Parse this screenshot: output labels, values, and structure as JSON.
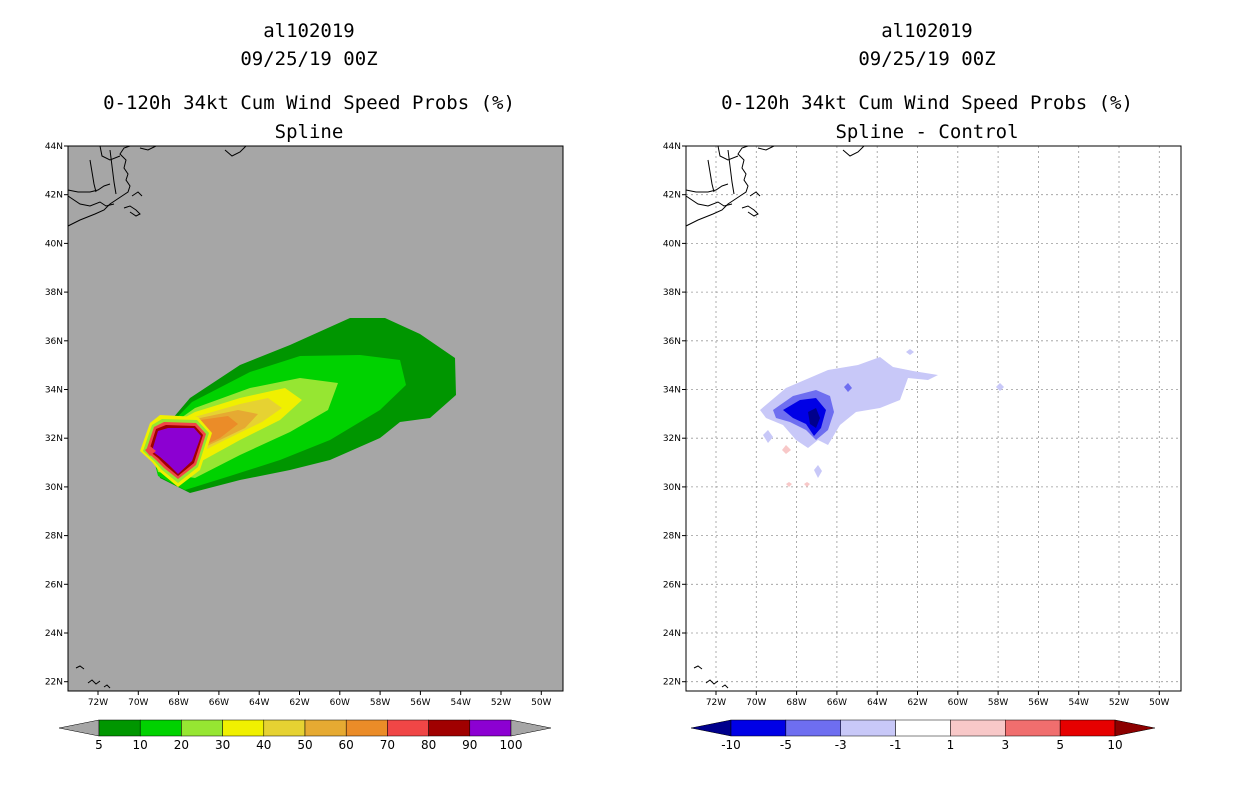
{
  "left_panel": {
    "storm_id": "al102019",
    "datetime": "09/25/19 00Z",
    "product": "0-120h 34kt Cum Wind Speed Probs (%)",
    "variant": "Spline",
    "map_background": "#a6a6a6",
    "colorbar": {
      "labels": [
        "5",
        "10",
        "20",
        "30",
        "40",
        "50",
        "60",
        "70",
        "80",
        "90",
        "100"
      ],
      "colors": [
        "#009600",
        "#00d200",
        "#96e632",
        "#f0f000",
        "#e6d232",
        "#e6aa32",
        "#eb8c28",
        "#f04646",
        "#a00000",
        "#8c00d2"
      ],
      "arrow_color": "#a6a6a6"
    }
  },
  "right_panel": {
    "storm_id": "al102019",
    "datetime": "09/25/19 00Z",
    "product": "0-120h 34kt Cum Wind Speed Probs (%)",
    "variant": "Spline - Control",
    "colorbar": {
      "labels": [
        "-10",
        "-5",
        "-3",
        "-1",
        "1",
        "3",
        "5",
        "10"
      ],
      "colors": [
        "#0000e6",
        "#6e6ef0",
        "#c8c8f8",
        "#ffffff",
        "#f8c8c8",
        "#f06e6e",
        "#e60000"
      ],
      "low_arrow_color": "#00008c",
      "high_arrow_color": "#8c0000"
    }
  },
  "axes": {
    "lat_labels": [
      "44N",
      "42N",
      "40N",
      "38N",
      "36N",
      "34N",
      "32N",
      "30N",
      "28N",
      "26N",
      "24N",
      "22N"
    ],
    "lon_labels": [
      "72W",
      "70W",
      "68W",
      "66W",
      "64W",
      "62W",
      "60W",
      "58W",
      "56W",
      "54W",
      "52W",
      "50W"
    ]
  }
}
